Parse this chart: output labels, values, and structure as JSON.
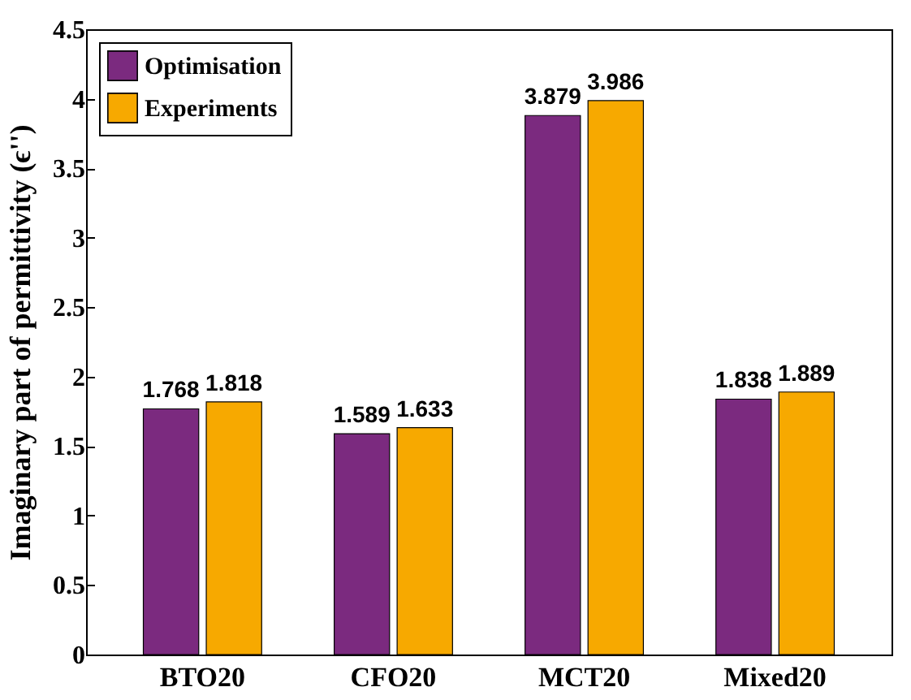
{
  "chart_data": {
    "type": "bar",
    "ylabel": "Imaginary part of permittivity (ϵ'')",
    "categories": [
      "BTO20",
      "CFO20",
      "MCT20",
      "Mixed20"
    ],
    "series": [
      {
        "name": "Optimisation",
        "color": "#7b2a7f",
        "values": [
          1.768,
          1.589,
          3.879,
          1.838
        ]
      },
      {
        "name": "Experiments",
        "color": "#f7a900",
        "values": [
          1.818,
          1.633,
          3.986,
          1.889
        ]
      }
    ],
    "ylim": [
      0,
      4.5
    ],
    "yticks": [
      0,
      0.5,
      1,
      1.5,
      2,
      2.5,
      3,
      3.5,
      4,
      4.5
    ],
    "data_labels": true,
    "legend": "top left",
    "grid": false
  }
}
